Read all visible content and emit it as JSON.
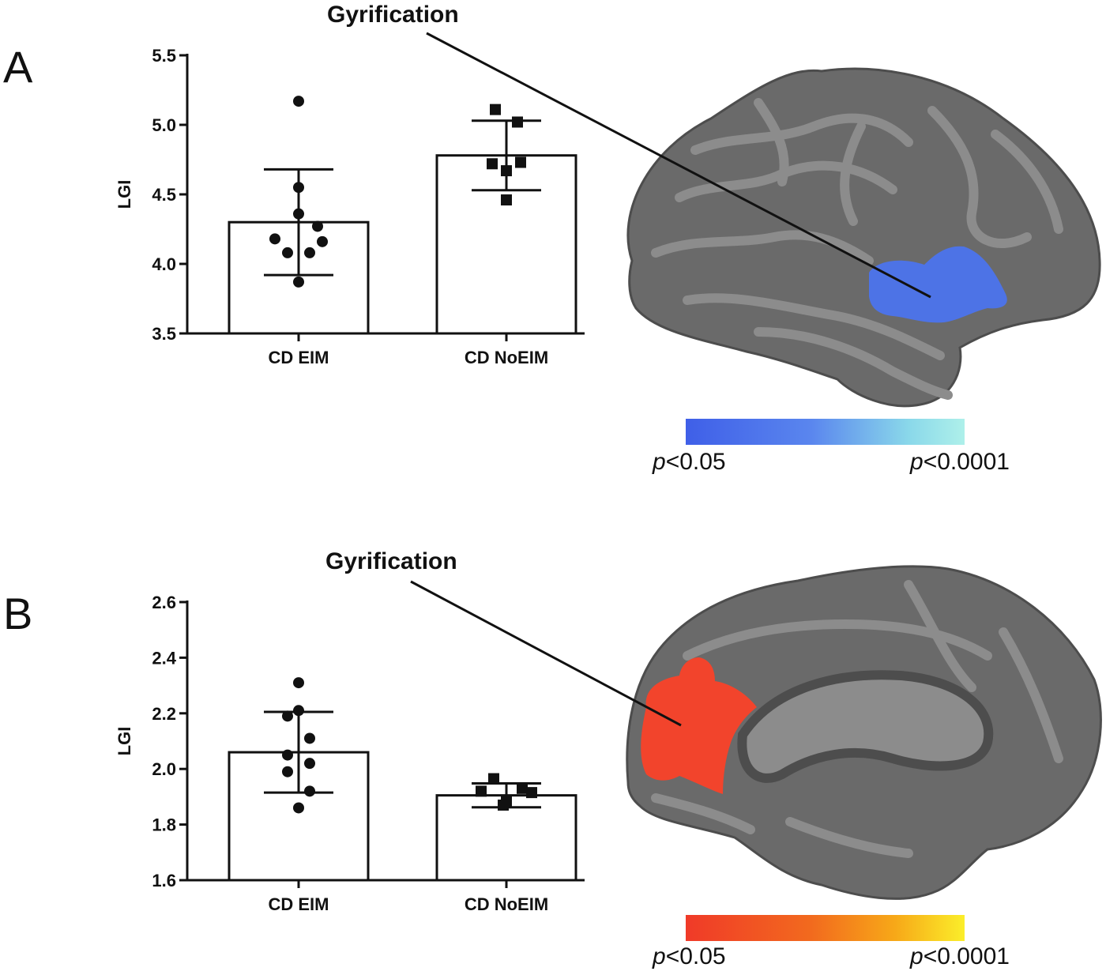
{
  "panels": [
    {
      "letter": "A",
      "callout": "Gyrification",
      "scale_low": "<0.05",
      "scale_high": "<0.0001",
      "scale_colors": [
        "#3f5fe8",
        "#5a86ee",
        "#8ad8ea",
        "#aef0ea"
      ],
      "highlight_color": "#4d73e6"
    },
    {
      "letter": "B",
      "callout": "Gyrification",
      "scale_low": "<0.05",
      "scale_high": "<0.0001",
      "scale_colors": [
        "#f03a28",
        "#f26a1e",
        "#f7a818",
        "#fbee2a"
      ],
      "highlight_color": "#f2442c"
    }
  ],
  "p_symbol": "p",
  "brain_colors": {
    "dark": "#4d4d4d",
    "mid": "#6a6a6a",
    "light": "#8c8c8c"
  },
  "chart_data": [
    {
      "type": "bar",
      "ylabel": "LGI",
      "categories": [
        "CD EIM",
        "CD NoEIM"
      ],
      "values": [
        4.3,
        4.78
      ],
      "errors": [
        0.38,
        0.25
      ],
      "ylim": [
        3.5,
        5.5
      ],
      "yticks": [
        "3.5",
        "4.0",
        "4.5",
        "5.0",
        "5.5"
      ],
      "points": [
        {
          "marker": "circle",
          "values": [
            5.17,
            4.55,
            4.36,
            4.27,
            4.18,
            4.16,
            4.08,
            4.08,
            3.87
          ]
        },
        {
          "marker": "square",
          "values": [
            5.11,
            5.02,
            4.73,
            4.72,
            4.67,
            4.46
          ]
        }
      ]
    },
    {
      "type": "bar",
      "ylabel": "LGI",
      "categories": [
        "CD EIM",
        "CD NoEIM"
      ],
      "values": [
        2.06,
        1.905
      ],
      "errors": [
        0.145,
        0.043
      ],
      "ylim": [
        1.6,
        2.6
      ],
      "yticks": [
        "1.6",
        "1.8",
        "2.0",
        "2.2",
        "2.4",
        "2.6"
      ],
      "points": [
        {
          "marker": "circle",
          "values": [
            2.31,
            2.21,
            2.19,
            2.11,
            2.05,
            2.02,
            1.99,
            1.92,
            1.86
          ]
        },
        {
          "marker": "square",
          "values": [
            1.965,
            1.93,
            1.92,
            1.915,
            1.885,
            1.87
          ]
        }
      ]
    }
  ]
}
